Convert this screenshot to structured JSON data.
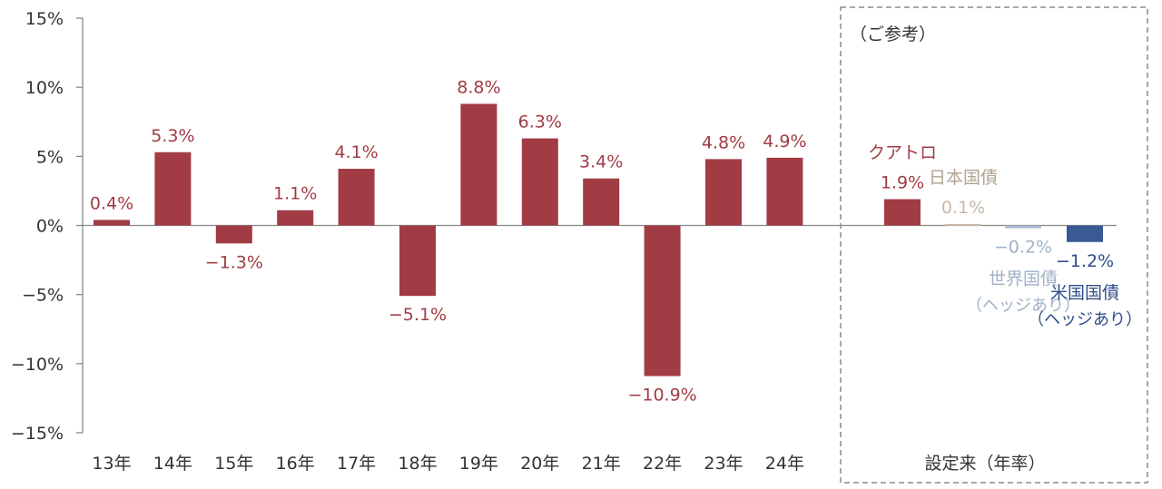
{
  "chart_data": {
    "type": "bar",
    "ylim": [
      -15,
      15
    ],
    "y_ticks": [
      {
        "value": 15,
        "label": "15%"
      },
      {
        "value": 10,
        "label": "10%"
      },
      {
        "value": 5,
        "label": "5%"
      },
      {
        "value": 0,
        "label": "0%"
      },
      {
        "value": -5,
        "label": "−5%"
      },
      {
        "value": -10,
        "label": "−10%"
      },
      {
        "value": -15,
        "label": "−15%"
      }
    ],
    "categories": [
      "13年",
      "14年",
      "15年",
      "16年",
      "17年",
      "18年",
      "19年",
      "20年",
      "21年",
      "22年",
      "23年",
      "24年"
    ],
    "values": [
      0.4,
      5.3,
      -1.3,
      1.1,
      4.1,
      -5.1,
      8.8,
      6.3,
      3.4,
      -10.9,
      4.8,
      4.9
    ],
    "value_labels": [
      "0.4%",
      "5.3%",
      "−1.3%",
      "1.1%",
      "4.1%",
      "−5.1%",
      "8.8%",
      "6.3%",
      "3.4%",
      "−10.9%",
      "4.8%",
      "4.9%"
    ],
    "bar_color": "#a13c44",
    "reference": {
      "title": "（ご参考）",
      "xlabel": "設定来（年率）",
      "items": [
        {
          "name": "クアトロ",
          "name_line2": "",
          "value": 1.9,
          "label": "1.9%",
          "color": "#a13c44",
          "name_color": "#a13c44"
        },
        {
          "name": "日本国債",
          "name_line2": "",
          "value": 0.1,
          "label": "0.1%",
          "color": "#c8b8a6",
          "name_color": "#b0a393"
        },
        {
          "name": "世界国債",
          "name_line2": "（ヘッジあり）",
          "value": -0.2,
          "label": "−0.2%",
          "color": "#a9b8cf",
          "name_color": "#9fb1c8"
        },
        {
          "name": "米国国債",
          "name_line2": "（ヘッジあり）",
          "value": -1.2,
          "label": "−1.2%",
          "color": "#3a5a96",
          "name_color": "#2f4d8a"
        }
      ]
    }
  }
}
